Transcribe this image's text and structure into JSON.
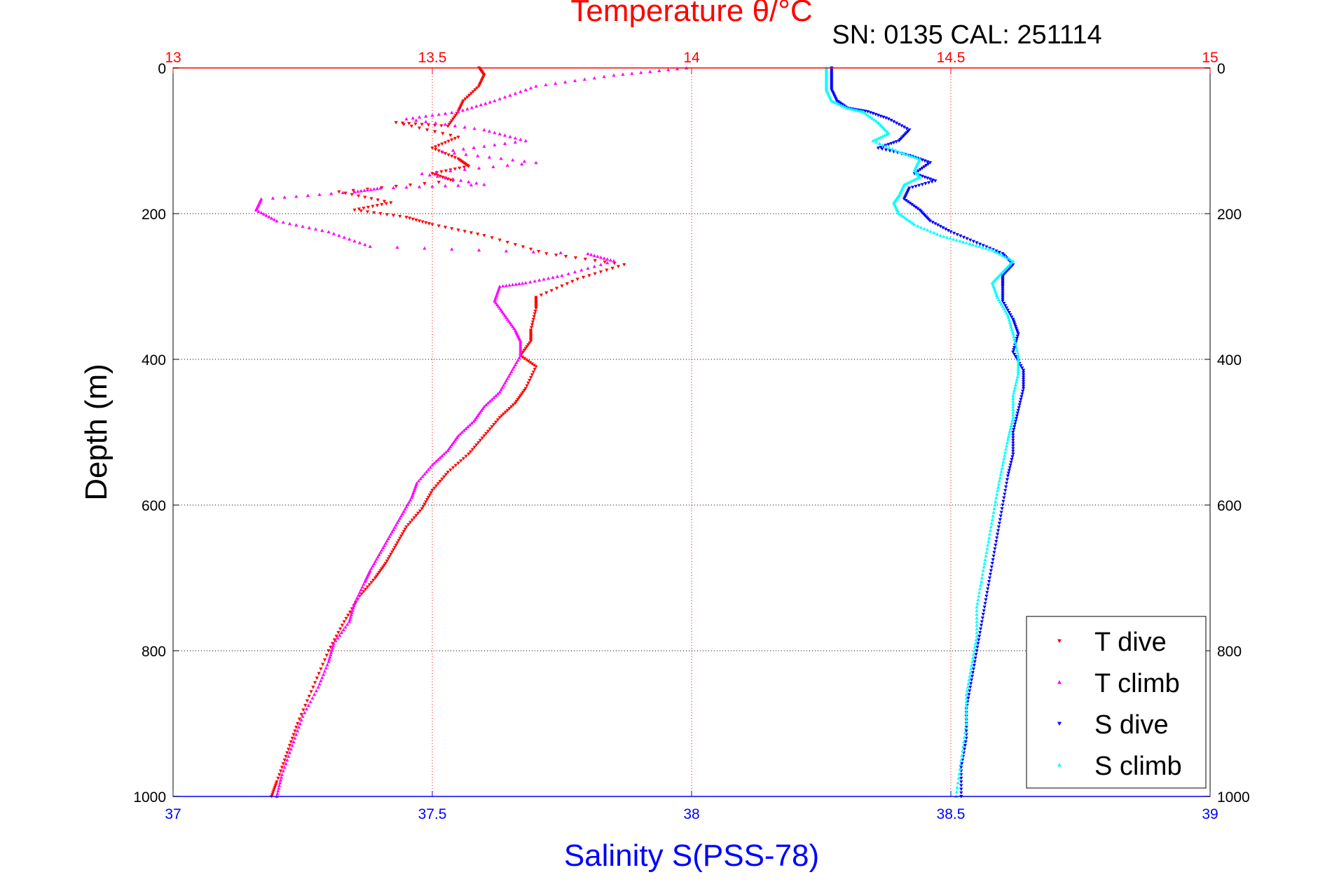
{
  "chart_data": {
    "type": "scatter",
    "title": "Temperature θ/°C",
    "subtitle": "SN: 0135  CAL: 251114",
    "xlabel": "Salinity S(PSS-78)",
    "ylabel": "Depth (m)",
    "x_bottom": {
      "label": "Salinity S(PSS-78)",
      "range": [
        37,
        39
      ],
      "ticks": [
        "37",
        "37.5",
        "38",
        "38.5",
        "39"
      ],
      "tick_values": [
        37,
        37.5,
        38,
        38.5,
        39
      ],
      "color": "#0000ff"
    },
    "x_top": {
      "label": "Temperature θ/°C",
      "range": [
        13,
        15
      ],
      "ticks": [
        "13",
        "13.5",
        "14",
        "14.5",
        "15"
      ],
      "tick_values": [
        13,
        13.5,
        14,
        14.5,
        15
      ],
      "color": "#ff0000"
    },
    "y": {
      "label": "Depth (m)",
      "range": [
        0,
        1000
      ],
      "reversed": true,
      "ticks": [
        "0",
        "200",
        "400",
        "600",
        "800",
        "1000"
      ],
      "tick_values": [
        0,
        200,
        400,
        600,
        800,
        1000
      ]
    },
    "grid": true,
    "legend_position": "bottom-right",
    "series": [
      {
        "name": "T dive",
        "axis": "top",
        "color": "#ff0000",
        "marker": "triangle-down",
        "points": [
          [
            13.59,
            0
          ],
          [
            13.6,
            10
          ],
          [
            13.59,
            25
          ],
          [
            13.56,
            45
          ],
          [
            13.55,
            60
          ],
          [
            13.53,
            80
          ],
          [
            13.43,
            75
          ],
          [
            13.55,
            95
          ],
          [
            13.5,
            110
          ],
          [
            13.55,
            125
          ],
          [
            13.57,
            135
          ],
          [
            13.5,
            145
          ],
          [
            13.54,
            155
          ],
          [
            13.32,
            170
          ],
          [
            13.42,
            185
          ],
          [
            13.35,
            195
          ],
          [
            13.45,
            205
          ],
          [
            13.5,
            215
          ],
          [
            13.6,
            230
          ],
          [
            13.72,
            255
          ],
          [
            13.87,
            270
          ],
          [
            13.78,
            290
          ],
          [
            13.7,
            315
          ],
          [
            13.7,
            330
          ],
          [
            13.69,
            360
          ],
          [
            13.69,
            375
          ],
          [
            13.67,
            395
          ],
          [
            13.7,
            410
          ],
          [
            13.68,
            440
          ],
          [
            13.66,
            460
          ],
          [
            13.63,
            480
          ],
          [
            13.6,
            505
          ],
          [
            13.57,
            530
          ],
          [
            13.53,
            555
          ],
          [
            13.5,
            580
          ],
          [
            13.48,
            605
          ],
          [
            13.45,
            630
          ],
          [
            13.43,
            655
          ],
          [
            13.41,
            680
          ],
          [
            13.39,
            700
          ],
          [
            13.36,
            725
          ],
          [
            13.33,
            760
          ],
          [
            13.3,
            800
          ],
          [
            13.27,
            850
          ],
          [
            13.24,
            900
          ],
          [
            13.22,
            940
          ],
          [
            13.2,
            980
          ],
          [
            13.19,
            1000
          ]
        ]
      },
      {
        "name": "T climb",
        "axis": "top",
        "color": "#ff00ff",
        "marker": "triangle-up",
        "points": [
          [
            13.99,
            0
          ],
          [
            13.85,
            10
          ],
          [
            13.7,
            25
          ],
          [
            13.62,
            45
          ],
          [
            13.55,
            60
          ],
          [
            13.45,
            70
          ],
          [
            13.6,
            85
          ],
          [
            13.68,
            100
          ],
          [
            13.52,
            115
          ],
          [
            13.7,
            130
          ],
          [
            13.48,
            145
          ],
          [
            13.6,
            160
          ],
          [
            13.4,
            165
          ],
          [
            13.35,
            170
          ],
          [
            13.17,
            180
          ],
          [
            13.16,
            195
          ],
          [
            13.2,
            210
          ],
          [
            13.3,
            225
          ],
          [
            13.38,
            245
          ],
          [
            13.8,
            255
          ],
          [
            13.85,
            265
          ],
          [
            13.75,
            285
          ],
          [
            13.68,
            295
          ],
          [
            13.63,
            300
          ],
          [
            13.62,
            320
          ],
          [
            13.64,
            340
          ],
          [
            13.66,
            360
          ],
          [
            13.67,
            375
          ],
          [
            13.67,
            395
          ],
          [
            13.65,
            420
          ],
          [
            13.63,
            445
          ],
          [
            13.6,
            465
          ],
          [
            13.58,
            485
          ],
          [
            13.55,
            505
          ],
          [
            13.53,
            525
          ],
          [
            13.5,
            545
          ],
          [
            13.47,
            570
          ],
          [
            13.46,
            590
          ],
          [
            13.44,
            615
          ],
          [
            13.42,
            640
          ],
          [
            13.4,
            665
          ],
          [
            13.38,
            690
          ],
          [
            13.37,
            705
          ],
          [
            13.35,
            735
          ],
          [
            13.34,
            760
          ],
          [
            13.31,
            790
          ],
          [
            13.3,
            815
          ],
          [
            13.28,
            850
          ],
          [
            13.25,
            890
          ],
          [
            13.23,
            930
          ],
          [
            13.21,
            970
          ],
          [
            13.2,
            1000
          ]
        ]
      },
      {
        "name": "S dive",
        "axis": "bottom",
        "color": "#0000ff",
        "marker": "triangle-down",
        "points": [
          [
            38.27,
            0
          ],
          [
            38.27,
            15
          ],
          [
            38.27,
            30
          ],
          [
            38.28,
            45
          ],
          [
            38.3,
            55
          ],
          [
            38.34,
            60
          ],
          [
            38.38,
            70
          ],
          [
            38.42,
            85
          ],
          [
            38.4,
            100
          ],
          [
            38.36,
            110
          ],
          [
            38.42,
            120
          ],
          [
            38.46,
            130
          ],
          [
            38.43,
            145
          ],
          [
            38.47,
            155
          ],
          [
            38.42,
            165
          ],
          [
            38.41,
            180
          ],
          [
            38.44,
            195
          ],
          [
            38.46,
            210
          ],
          [
            38.5,
            225
          ],
          [
            38.55,
            240
          ],
          [
            38.6,
            255
          ],
          [
            38.62,
            270
          ],
          [
            38.6,
            285
          ],
          [
            38.6,
            300
          ],
          [
            38.6,
            320
          ],
          [
            38.62,
            345
          ],
          [
            38.63,
            365
          ],
          [
            38.62,
            390
          ],
          [
            38.64,
            415
          ],
          [
            38.64,
            440
          ],
          [
            38.63,
            470
          ],
          [
            38.62,
            500
          ],
          [
            38.62,
            530
          ],
          [
            38.61,
            560
          ],
          [
            38.6,
            600
          ],
          [
            38.59,
            640
          ],
          [
            38.58,
            680
          ],
          [
            38.57,
            720
          ],
          [
            38.56,
            760
          ],
          [
            38.55,
            800
          ],
          [
            38.54,
            840
          ],
          [
            38.53,
            880
          ],
          [
            38.53,
            920
          ],
          [
            38.52,
            960
          ],
          [
            38.52,
            1000
          ]
        ]
      },
      {
        "name": "S climb",
        "axis": "bottom",
        "color": "#00ffff",
        "marker": "triangle-up",
        "points": [
          [
            38.26,
            0
          ],
          [
            38.26,
            15
          ],
          [
            38.26,
            30
          ],
          [
            38.27,
            45
          ],
          [
            38.3,
            55
          ],
          [
            38.33,
            60
          ],
          [
            38.36,
            75
          ],
          [
            38.38,
            90
          ],
          [
            38.35,
            100
          ],
          [
            38.4,
            115
          ],
          [
            38.44,
            125
          ],
          [
            38.43,
            140
          ],
          [
            38.44,
            150
          ],
          [
            38.41,
            160
          ],
          [
            38.4,
            175
          ],
          [
            38.39,
            185
          ],
          [
            38.4,
            200
          ],
          [
            38.43,
            215
          ],
          [
            38.48,
            230
          ],
          [
            38.53,
            240
          ],
          [
            38.58,
            250
          ],
          [
            38.62,
            265
          ],
          [
            38.6,
            280
          ],
          [
            38.58,
            295
          ],
          [
            38.59,
            315
          ],
          [
            38.61,
            340
          ],
          [
            38.62,
            365
          ],
          [
            38.63,
            395
          ],
          [
            38.63,
            420
          ],
          [
            38.62,
            450
          ],
          [
            38.62,
            480
          ],
          [
            38.61,
            510
          ],
          [
            38.6,
            545
          ],
          [
            38.59,
            580
          ],
          [
            38.58,
            620
          ],
          [
            38.57,
            660
          ],
          [
            38.56,
            700
          ],
          [
            38.55,
            740
          ],
          [
            38.55,
            780
          ],
          [
            38.54,
            820
          ],
          [
            38.53,
            860
          ],
          [
            38.53,
            900
          ],
          [
            38.52,
            950
          ],
          [
            38.51,
            1000
          ]
        ]
      }
    ]
  }
}
